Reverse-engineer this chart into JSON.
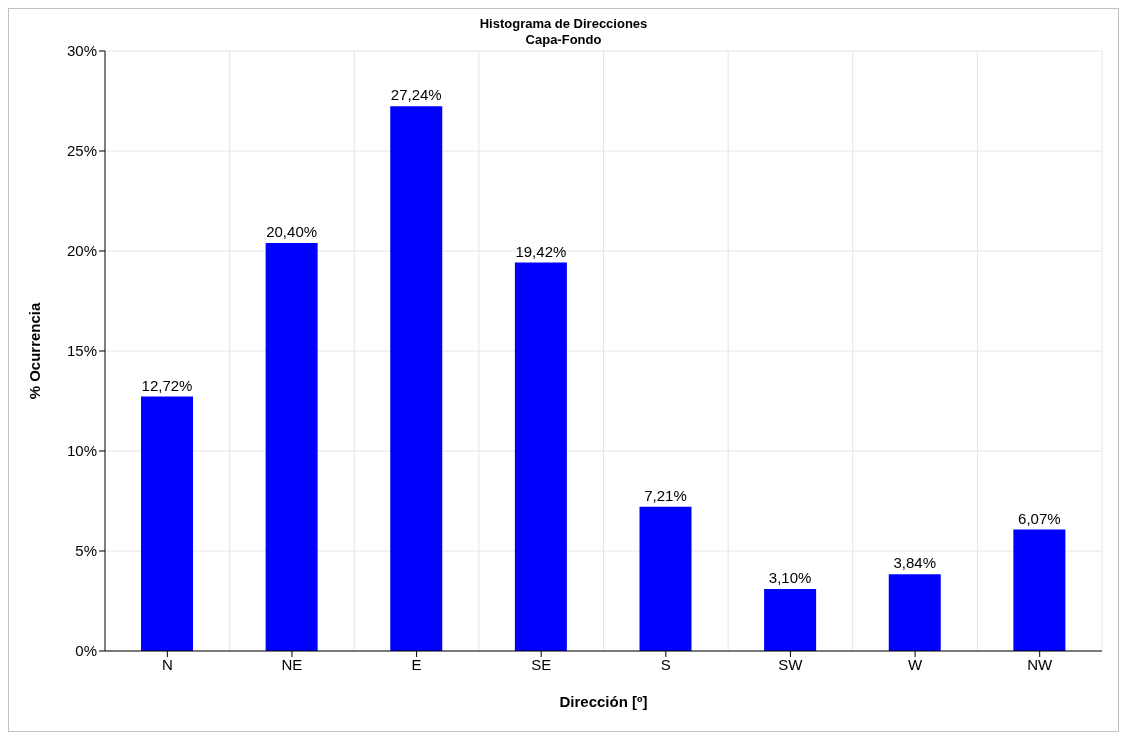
{
  "chart_data": {
    "type": "bar",
    "title": "Histograma de Direcciones",
    "subtitle": "Capa-Fondo",
    "xlabel": "Dirección [º]",
    "ylabel": "% Ocurrencia",
    "categories": [
      "N",
      "NE",
      "E",
      "SE",
      "S",
      "SW",
      "W",
      "NW"
    ],
    "values": [
      12.72,
      20.4,
      27.24,
      19.42,
      7.21,
      3.1,
      3.84,
      6.07
    ],
    "value_labels": [
      "12,72%",
      "20,40%",
      "27,24%",
      "19,42%",
      "7,21%",
      "3,10%",
      "3,84%",
      "6,07%"
    ],
    "color": "#0000ff",
    "ylim": [
      0,
      30
    ],
    "yticks": [
      {
        "value": 0,
        "label": "0%"
      },
      {
        "value": 5,
        "label": "5%"
      },
      {
        "value": 10,
        "label": "10%"
      },
      {
        "value": 15,
        "label": "15%"
      },
      {
        "value": 20,
        "label": "20%"
      },
      {
        "value": 25,
        "label": "25%"
      },
      {
        "value": 30,
        "label": "30%"
      }
    ],
    "grid": true
  }
}
